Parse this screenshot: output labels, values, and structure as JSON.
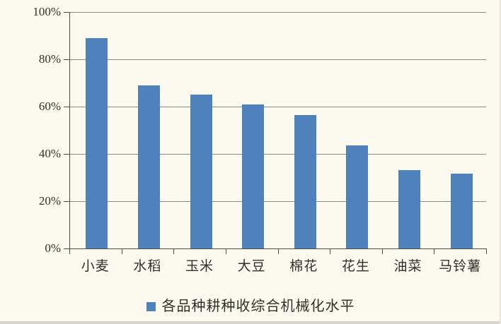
{
  "chart_data": {
    "type": "bar",
    "categories": [
      "小麦",
      "水稻",
      "玉米",
      "大豆",
      "棉花",
      "花生",
      "油菜",
      "马铃薯"
    ],
    "values": [
      89,
      69,
      65,
      61,
      56.5,
      43.5,
      33,
      31.5
    ],
    "series_name": "各品种耕种收综合机械化水平",
    "title": "",
    "xlabel": "",
    "ylabel": "",
    "ylim": [
      0,
      100
    ],
    "ytick_step": 20,
    "ytick_labels": [
      "0%",
      "20%",
      "40%",
      "60%",
      "80%",
      "100%"
    ],
    "grid": true,
    "legend_position": "bottom",
    "legend_marker": "square",
    "colors": {
      "bar": "#4f81bd",
      "background": "#fcf9ef",
      "gridline": "#8a8a8a",
      "axis": "#4d4d4d",
      "text": "#33302c"
    }
  }
}
